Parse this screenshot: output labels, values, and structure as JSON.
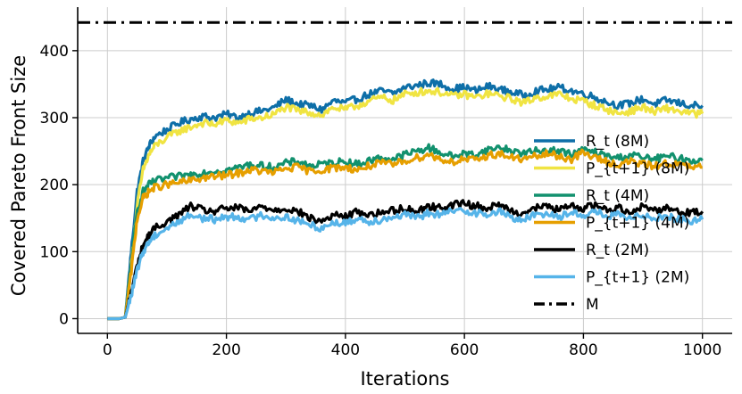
{
  "chart_data": {
    "type": "line",
    "title": "",
    "xlabel": "Iterations",
    "ylabel": "Covered Pareto Front Size",
    "xlim": [
      -50,
      1050
    ],
    "ylim": [
      -22,
      465
    ],
    "xticks": [
      0,
      200,
      400,
      600,
      800,
      1000
    ],
    "yticks": [
      0,
      100,
      200,
      300,
      400
    ],
    "grid": true,
    "legend_position": "right",
    "series": [
      {
        "name": "R_t (8M)",
        "color": "#0e6fa8",
        "style": "solid",
        "x": [
          0,
          20,
          30,
          40,
          50,
          60,
          70,
          80,
          100,
          120,
          140,
          160,
          180,
          200,
          220,
          240,
          260,
          280,
          300,
          320,
          340,
          360,
          380,
          400,
          420,
          440,
          460,
          480,
          500,
          520,
          540,
          560,
          580,
          600,
          620,
          640,
          660,
          680,
          700,
          720,
          740,
          760,
          780,
          800,
          820,
          840,
          860,
          880,
          900,
          920,
          940,
          960,
          980,
          1000
        ],
        "y": [
          0,
          0,
          2,
          100,
          190,
          235,
          258,
          272,
          282,
          292,
          298,
          302,
          300,
          305,
          300,
          307,
          310,
          315,
          327,
          320,
          318,
          312,
          325,
          322,
          328,
          335,
          340,
          336,
          345,
          348,
          352,
          350,
          343,
          345,
          340,
          347,
          342,
          338,
          333,
          340,
          342,
          345,
          340,
          336,
          330,
          323,
          318,
          322,
          328,
          320,
          326,
          322,
          318,
          318
        ]
      },
      {
        "name": "P_{t+1} (8M)",
        "color": "#f0e442",
        "style": "solid",
        "x": [
          0,
          20,
          30,
          40,
          50,
          60,
          70,
          80,
          100,
          120,
          140,
          160,
          180,
          200,
          220,
          240,
          260,
          280,
          300,
          320,
          340,
          360,
          380,
          400,
          420,
          440,
          460,
          480,
          500,
          520,
          540,
          560,
          580,
          600,
          620,
          640,
          660,
          680,
          700,
          720,
          740,
          760,
          780,
          800,
          820,
          840,
          860,
          880,
          900,
          920,
          940,
          960,
          980,
          1000
        ],
        "y": [
          0,
          0,
          2,
          80,
          170,
          222,
          245,
          258,
          270,
          280,
          286,
          292,
          290,
          296,
          292,
          298,
          300,
          305,
          316,
          310,
          308,
          304,
          315,
          312,
          318,
          325,
          330,
          326,
          335,
          338,
          340,
          338,
          332,
          335,
          330,
          336,
          332,
          328,
          322,
          330,
          332,
          335,
          328,
          325,
          318,
          312,
          306,
          310,
          316,
          308,
          314,
          310,
          306,
          306
        ]
      },
      {
        "name": "R_t (4M)",
        "color": "#12916e",
        "style": "solid",
        "x": [
          0,
          20,
          30,
          40,
          50,
          60,
          70,
          80,
          100,
          120,
          140,
          160,
          180,
          200,
          220,
          240,
          260,
          280,
          300,
          320,
          340,
          360,
          380,
          400,
          420,
          440,
          460,
          480,
          500,
          520,
          540,
          560,
          580,
          600,
          620,
          640,
          660,
          680,
          700,
          720,
          740,
          760,
          780,
          800,
          820,
          840,
          860,
          880,
          900,
          920,
          940,
          960,
          980,
          1000
        ],
        "y": [
          0,
          0,
          2,
          80,
          160,
          190,
          200,
          205,
          210,
          212,
          215,
          218,
          220,
          222,
          225,
          230,
          228,
          226,
          232,
          235,
          228,
          230,
          233,
          235,
          230,
          236,
          240,
          238,
          245,
          250,
          255,
          248,
          242,
          246,
          245,
          252,
          256,
          250,
          247,
          250,
          252,
          250,
          245,
          252,
          248,
          242,
          240,
          245,
          240,
          238,
          242,
          240,
          236,
          236
        ]
      },
      {
        "name": "P_{t+1} (4M)",
        "color": "#e69f00",
        "style": "solid",
        "x": [
          0,
          20,
          30,
          40,
          50,
          60,
          70,
          80,
          100,
          120,
          140,
          160,
          180,
          200,
          220,
          240,
          260,
          280,
          300,
          320,
          340,
          360,
          380,
          400,
          420,
          440,
          460,
          480,
          500,
          520,
          540,
          560,
          580,
          600,
          620,
          640,
          660,
          680,
          700,
          720,
          740,
          760,
          780,
          800,
          820,
          840,
          860,
          880,
          900,
          920,
          940,
          960,
          980,
          1000
        ],
        "y": [
          0,
          0,
          2,
          70,
          150,
          180,
          190,
          196,
          200,
          203,
          206,
          210,
          212,
          214,
          217,
          222,
          220,
          218,
          224,
          226,
          220,
          222,
          225,
          226,
          222,
          228,
          232,
          230,
          236,
          240,
          245,
          238,
          234,
          238,
          236,
          244,
          246,
          240,
          238,
          242,
          246,
          242,
          238,
          248,
          240,
          234,
          230,
          235,
          230,
          228,
          232,
          230,
          226,
          226
        ]
      },
      {
        "name": "R_t (2M)",
        "color": "#000000",
        "style": "solid",
        "x": [
          0,
          20,
          30,
          40,
          50,
          60,
          70,
          80,
          100,
          120,
          140,
          160,
          180,
          200,
          220,
          240,
          260,
          280,
          300,
          320,
          340,
          360,
          380,
          400,
          420,
          440,
          460,
          480,
          500,
          520,
          540,
          560,
          580,
          600,
          620,
          640,
          660,
          680,
          700,
          720,
          740,
          760,
          780,
          800,
          820,
          840,
          860,
          880,
          900,
          920,
          940,
          960,
          980,
          1000
        ],
        "y": [
          0,
          0,
          2,
          40,
          80,
          110,
          125,
          135,
          145,
          155,
          168,
          162,
          160,
          165,
          165,
          160,
          168,
          162,
          165,
          160,
          150,
          145,
          155,
          152,
          160,
          155,
          158,
          162,
          165,
          160,
          168,
          165,
          170,
          172,
          168,
          165,
          170,
          160,
          158,
          165,
          168,
          162,
          168,
          165,
          170,
          162,
          165,
          160,
          168,
          162,
          166,
          160,
          158,
          160
        ]
      },
      {
        "name": "P_{t+1} (2M)",
        "color": "#56b4e9",
        "style": "solid",
        "x": [
          0,
          20,
          30,
          40,
          50,
          60,
          70,
          80,
          100,
          120,
          140,
          160,
          180,
          200,
          220,
          240,
          260,
          280,
          300,
          320,
          340,
          360,
          380,
          400,
          420,
          440,
          460,
          480,
          500,
          520,
          540,
          560,
          580,
          600,
          620,
          640,
          660,
          680,
          700,
          720,
          740,
          760,
          780,
          800,
          820,
          840,
          860,
          880,
          900,
          920,
          940,
          960,
          980,
          1000
        ],
        "y": [
          0,
          0,
          2,
          35,
          72,
          100,
          115,
          125,
          135,
          145,
          155,
          150,
          148,
          152,
          152,
          148,
          155,
          150,
          152,
          146,
          140,
          135,
          144,
          142,
          150,
          145,
          148,
          152,
          155,
          150,
          158,
          155,
          160,
          162,
          158,
          155,
          160,
          150,
          148,
          155,
          158,
          152,
          158,
          155,
          160,
          152,
          155,
          148,
          156,
          150,
          154,
          148,
          146,
          148
        ]
      },
      {
        "name": "M",
        "color": "#000000",
        "style": "dashdot",
        "x": [
          -50,
          1050
        ],
        "y": [
          442,
          442
        ]
      }
    ]
  }
}
